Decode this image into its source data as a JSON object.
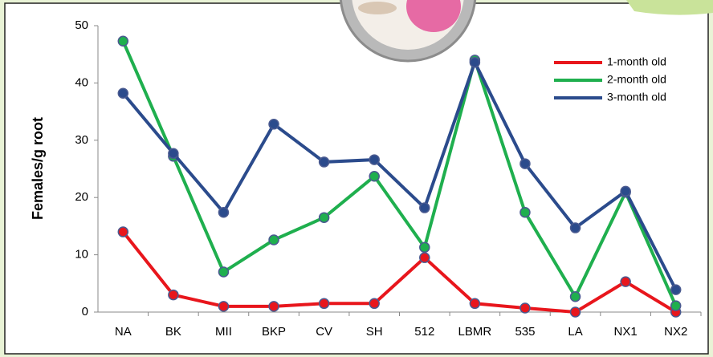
{
  "chart_data": {
    "type": "line",
    "y_label": "Females/g root",
    "categories": [
      "NA",
      "BK",
      "MII",
      "BKP",
      "CV",
      "SH",
      "512",
      "LBMR",
      "535",
      "LA",
      "NX1",
      "NX2"
    ],
    "series": [
      {
        "name": "1-month old",
        "color": "#e8161c",
        "values": [
          14,
          3,
          1,
          1,
          1.5,
          1.5,
          9.5,
          1.5,
          0.7,
          0,
          5.3,
          0
        ]
      },
      {
        "name": "2-month old",
        "color": "#1faf4e",
        "values": [
          47.3,
          27.2,
          7,
          12.6,
          16.5,
          23.7,
          11.3,
          44,
          17.4,
          2.7,
          20.9,
          1.1
        ]
      },
      {
        "name": "3-month old",
        "color": "#2b4b8c",
        "values": [
          38.2,
          27.7,
          17.4,
          32.8,
          26.2,
          26.6,
          18.2,
          43.6,
          25.9,
          14.7,
          21.1,
          3.9
        ]
      }
    ],
    "ylim": [
      0,
      50
    ],
    "yticks": [
      0,
      10,
      20,
      30,
      40,
      50
    ],
    "grid": false,
    "legend": "upper right"
  }
}
